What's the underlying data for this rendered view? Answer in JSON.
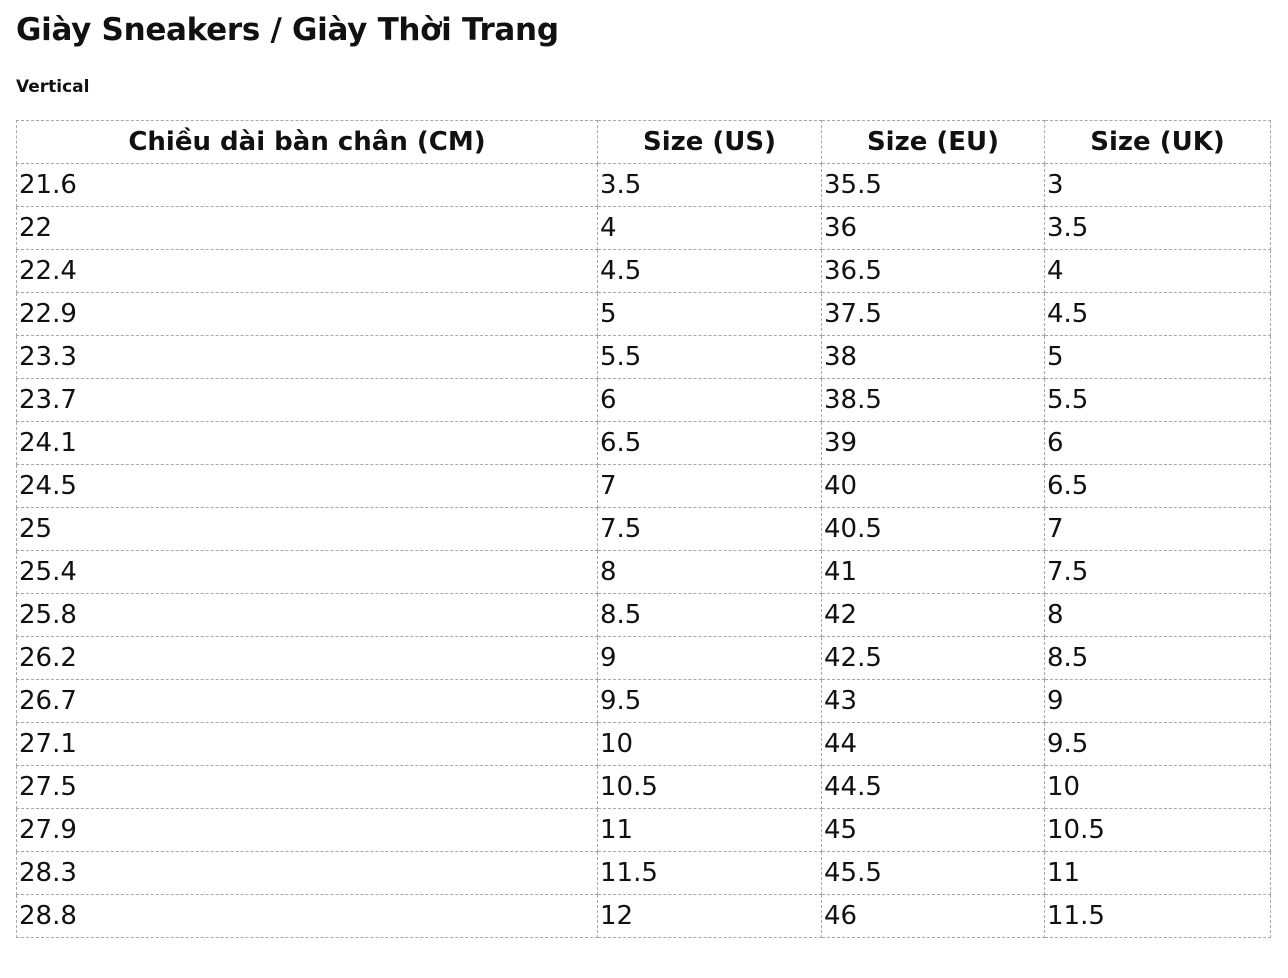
{
  "header": {
    "title": "Giày Sneakers / Giày Thời Trang",
    "subtitle": "Vertical"
  },
  "table": {
    "columns": [
      "Chiều dài bàn chân (CM)",
      "Size (US)",
      "Size (EU)",
      "Size (UK)"
    ],
    "rows": [
      [
        "21.6",
        "3.5",
        "35.5",
        "3"
      ],
      [
        "22",
        "4",
        "36",
        "3.5"
      ],
      [
        "22.4",
        "4.5",
        "36.5",
        "4"
      ],
      [
        "22.9",
        "5",
        "37.5",
        "4.5"
      ],
      [
        "23.3",
        "5.5",
        "38",
        "5"
      ],
      [
        "23.7",
        "6",
        "38.5",
        "5.5"
      ],
      [
        "24.1",
        "6.5",
        "39",
        "6"
      ],
      [
        "24.5",
        "7",
        "40",
        "6.5"
      ],
      [
        "25",
        "7.5",
        "40.5",
        "7"
      ],
      [
        "25.4",
        "8",
        "41",
        "7.5"
      ],
      [
        "25.8",
        "8.5",
        "42",
        "8"
      ],
      [
        "26.2",
        "9",
        "42.5",
        "8.5"
      ],
      [
        "26.7",
        "9.5",
        "43",
        "9"
      ],
      [
        "27.1",
        "10",
        "44",
        "9.5"
      ],
      [
        "27.5",
        "10.5",
        "44.5",
        "10"
      ],
      [
        "27.9",
        "11",
        "45",
        "10.5"
      ],
      [
        "28.3",
        "11.5",
        "45.5",
        "11"
      ],
      [
        "28.8",
        "12",
        "46",
        "11.5"
      ]
    ]
  }
}
